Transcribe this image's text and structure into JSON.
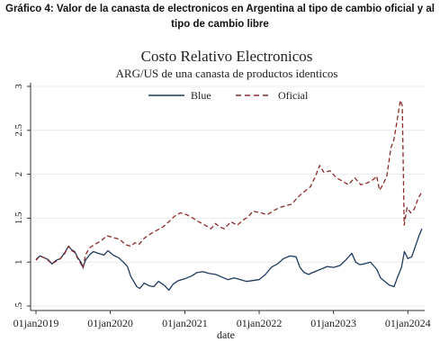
{
  "caption": {
    "line1": "Gráfico 4: Valor de la canasta de electronicos en Argentina al tipo de cambio oficial y al",
    "line2": "tipo de cambio libre"
  },
  "chart_data": {
    "type": "line",
    "title": "Costo Relativo Electronicos",
    "subtitle": "ARG/US de una canasta de productos identicos",
    "xlabel": "date",
    "ylabel": "",
    "ylim": [
      0.5,
      3.0
    ],
    "xlim": [
      "2019-01-01",
      "2024-03-15"
    ],
    "x_ticks": [
      "01jan2019",
      "01jan2020",
      "01jan2021",
      "01jan2022",
      "01jan2023",
      "01jan2024"
    ],
    "y_ticks": [
      ".5",
      "1",
      "1.5",
      "2",
      "2.5",
      "3"
    ],
    "y_tick_values": [
      0.5,
      1.0,
      1.5,
      2.0,
      2.5,
      3.0
    ],
    "grid": true,
    "legend_position": "top",
    "colors": {
      "Blue": "#1f3a60",
      "Oficial": "#8b2a2a"
    },
    "series": [
      {
        "name": "Blue",
        "style": "solid",
        "points": [
          [
            "2019-01-01",
            1.03
          ],
          [
            "2019-01-20",
            1.07
          ],
          [
            "2019-02-10",
            1.05
          ],
          [
            "2019-03-01",
            1.03
          ],
          [
            "2019-03-20",
            0.98
          ],
          [
            "2019-04-10",
            1.02
          ],
          [
            "2019-05-01",
            1.04
          ],
          [
            "2019-05-20",
            1.1
          ],
          [
            "2019-06-10",
            1.18
          ],
          [
            "2019-06-25",
            1.14
          ],
          [
            "2019-07-10",
            1.12
          ],
          [
            "2019-07-25",
            1.05
          ],
          [
            "2019-08-10",
            1.0
          ],
          [
            "2019-08-20",
            0.94
          ],
          [
            "2019-09-01",
            1.02
          ],
          [
            "2019-09-20",
            1.08
          ],
          [
            "2019-10-10",
            1.12
          ],
          [
            "2019-11-01",
            1.1
          ],
          [
            "2019-12-01",
            1.08
          ],
          [
            "2019-12-20",
            1.13
          ],
          [
            "2020-01-15",
            1.08
          ],
          [
            "2020-02-10",
            1.05
          ],
          [
            "2020-03-05",
            1.0
          ],
          [
            "2020-03-25",
            0.95
          ],
          [
            "2020-04-10",
            0.84
          ],
          [
            "2020-04-25",
            0.78
          ],
          [
            "2020-05-10",
            0.72
          ],
          [
            "2020-05-25",
            0.7
          ],
          [
            "2020-06-15",
            0.76
          ],
          [
            "2020-07-10",
            0.73
          ],
          [
            "2020-08-01",
            0.72
          ],
          [
            "2020-08-25",
            0.78
          ],
          [
            "2020-09-20",
            0.74
          ],
          [
            "2020-10-15",
            0.68
          ],
          [
            "2020-11-05",
            0.75
          ],
          [
            "2020-12-01",
            0.79
          ],
          [
            "2021-01-01",
            0.81
          ],
          [
            "2021-02-01",
            0.84
          ],
          [
            "2021-03-01",
            0.88
          ],
          [
            "2021-04-01",
            0.89
          ],
          [
            "2021-05-01",
            0.87
          ],
          [
            "2021-06-01",
            0.86
          ],
          [
            "2021-07-01",
            0.83
          ],
          [
            "2021-08-01",
            0.8
          ],
          [
            "2021-09-01",
            0.82
          ],
          [
            "2021-10-01",
            0.8
          ],
          [
            "2021-11-01",
            0.78
          ],
          [
            "2021-12-01",
            0.79
          ],
          [
            "2022-01-01",
            0.8
          ],
          [
            "2022-02-01",
            0.86
          ],
          [
            "2022-03-01",
            0.94
          ],
          [
            "2022-04-01",
            0.98
          ],
          [
            "2022-05-01",
            1.04
          ],
          [
            "2022-06-01",
            1.07
          ],
          [
            "2022-07-01",
            1.06
          ],
          [
            "2022-07-20",
            0.94
          ],
          [
            "2022-08-10",
            0.88
          ],
          [
            "2022-09-01",
            0.86
          ],
          [
            "2022-10-01",
            0.89
          ],
          [
            "2022-11-01",
            0.92
          ],
          [
            "2022-12-01",
            0.95
          ],
          [
            "2023-01-01",
            0.94
          ],
          [
            "2023-02-01",
            0.96
          ],
          [
            "2023-03-01",
            1.02
          ],
          [
            "2023-04-01",
            1.1
          ],
          [
            "2023-04-20",
            1.0
          ],
          [
            "2023-05-10",
            0.97
          ],
          [
            "2023-06-01",
            0.98
          ],
          [
            "2023-07-01",
            1.0
          ],
          [
            "2023-08-01",
            0.92
          ],
          [
            "2023-08-20",
            0.82
          ],
          [
            "2023-09-10",
            0.78
          ],
          [
            "2023-10-01",
            0.74
          ],
          [
            "2023-10-25",
            0.72
          ],
          [
            "2023-11-10",
            0.82
          ],
          [
            "2023-12-01",
            0.94
          ],
          [
            "2023-12-15",
            1.12
          ],
          [
            "2024-01-01",
            1.04
          ],
          [
            "2024-01-20",
            1.06
          ],
          [
            "2024-02-10",
            1.2
          ],
          [
            "2024-02-25",
            1.3
          ],
          [
            "2024-03-10",
            1.38
          ]
        ]
      },
      {
        "name": "Oficial",
        "style": "dashed",
        "points": [
          [
            "2019-01-01",
            1.02
          ],
          [
            "2019-01-20",
            1.07
          ],
          [
            "2019-02-10",
            1.05
          ],
          [
            "2019-03-01",
            1.02
          ],
          [
            "2019-03-20",
            0.98
          ],
          [
            "2019-04-10",
            1.01
          ],
          [
            "2019-05-01",
            1.04
          ],
          [
            "2019-05-20",
            1.09
          ],
          [
            "2019-06-10",
            1.18
          ],
          [
            "2019-06-25",
            1.13
          ],
          [
            "2019-07-10",
            1.11
          ],
          [
            "2019-07-25",
            1.04
          ],
          [
            "2019-08-10",
            0.98
          ],
          [
            "2019-08-20",
            0.93
          ],
          [
            "2019-09-01",
            1.08
          ],
          [
            "2019-09-20",
            1.16
          ],
          [
            "2019-10-15",
            1.2
          ],
          [
            "2019-11-15",
            1.24
          ],
          [
            "2019-12-15",
            1.3
          ],
          [
            "2020-01-15",
            1.28
          ],
          [
            "2020-02-15",
            1.26
          ],
          [
            "2020-03-15",
            1.2
          ],
          [
            "2020-04-10",
            1.18
          ],
          [
            "2020-05-01",
            1.22
          ],
          [
            "2020-05-20",
            1.2
          ],
          [
            "2020-06-15",
            1.27
          ],
          [
            "2020-07-15",
            1.32
          ],
          [
            "2020-08-15",
            1.36
          ],
          [
            "2020-09-15",
            1.4
          ],
          [
            "2020-10-15",
            1.46
          ],
          [
            "2020-11-10",
            1.52
          ],
          [
            "2020-12-10",
            1.56
          ],
          [
            "2021-01-10",
            1.54
          ],
          [
            "2021-02-10",
            1.5
          ],
          [
            "2021-03-10",
            1.46
          ],
          [
            "2021-04-10",
            1.42
          ],
          [
            "2021-05-10",
            1.38
          ],
          [
            "2021-06-01",
            1.44
          ],
          [
            "2021-06-20",
            1.4
          ],
          [
            "2021-07-15",
            1.38
          ],
          [
            "2021-08-15",
            1.46
          ],
          [
            "2021-09-15",
            1.42
          ],
          [
            "2021-10-15",
            1.48
          ],
          [
            "2021-11-10",
            1.52
          ],
          [
            "2021-12-01",
            1.58
          ],
          [
            "2022-01-10",
            1.56
          ],
          [
            "2022-02-10",
            1.54
          ],
          [
            "2022-03-10",
            1.58
          ],
          [
            "2022-04-10",
            1.62
          ],
          [
            "2022-05-10",
            1.64
          ],
          [
            "2022-06-10",
            1.66
          ],
          [
            "2022-07-10",
            1.74
          ],
          [
            "2022-08-10",
            1.8
          ],
          [
            "2022-09-10",
            1.86
          ],
          [
            "2022-10-05",
            1.98
          ],
          [
            "2022-10-25",
            2.1
          ],
          [
            "2022-11-15",
            2.02
          ],
          [
            "2022-12-15",
            2.04
          ],
          [
            "2023-01-15",
            1.96
          ],
          [
            "2023-02-15",
            1.92
          ],
          [
            "2023-03-15",
            1.88
          ],
          [
            "2023-04-15",
            1.96
          ],
          [
            "2023-05-15",
            1.88
          ],
          [
            "2023-06-15",
            1.9
          ],
          [
            "2023-07-15",
            1.94
          ],
          [
            "2023-08-01",
            1.98
          ],
          [
            "2023-08-15",
            1.82
          ],
          [
            "2023-09-01",
            1.88
          ],
          [
            "2023-09-20",
            1.98
          ],
          [
            "2023-10-10",
            2.3
          ],
          [
            "2023-10-25",
            2.4
          ],
          [
            "2023-11-10",
            2.62
          ],
          [
            "2023-11-25",
            2.84
          ],
          [
            "2023-12-05",
            2.78
          ],
          [
            "2023-12-14",
            1.42
          ],
          [
            "2023-12-28",
            1.62
          ],
          [
            "2024-01-15",
            1.56
          ],
          [
            "2024-02-01",
            1.6
          ],
          [
            "2024-02-20",
            1.72
          ],
          [
            "2024-03-10",
            1.8
          ]
        ]
      }
    ]
  }
}
